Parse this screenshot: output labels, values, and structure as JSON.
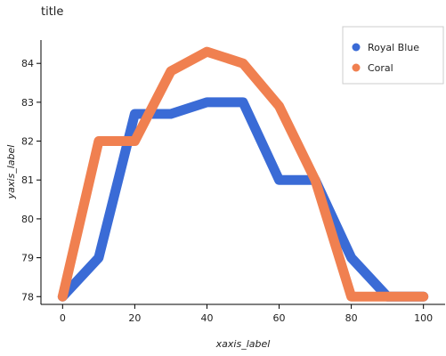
{
  "chart_data": {
    "type": "scatter",
    "title": "title",
    "xlabel": "xaxis_label",
    "ylabel": "yaxis_label",
    "xlim": [
      -6,
      106
    ],
    "ylim": [
      77.8,
      84.6
    ],
    "xticks": [
      0,
      20,
      40,
      60,
      80,
      100
    ],
    "yticks": [
      78,
      79,
      80,
      81,
      82,
      83,
      84
    ],
    "grid": false,
    "legend_position": "top-right",
    "series": [
      {
        "name": "Royal Blue",
        "color": "#3a6bd6",
        "points": [
          [
            0,
            78
          ],
          [
            10,
            79
          ],
          [
            20,
            82.7
          ],
          [
            30,
            82.7
          ],
          [
            40,
            83
          ],
          [
            50,
            83
          ],
          [
            60,
            81
          ],
          [
            70,
            81
          ],
          [
            80,
            79
          ],
          [
            90,
            78
          ],
          [
            100,
            78
          ]
        ]
      },
      {
        "name": "Coral",
        "color": "#f08050",
        "points": [
          [
            0,
            78
          ],
          [
            10,
            82
          ],
          [
            20,
            82
          ],
          [
            30,
            83.8
          ],
          [
            40,
            84.3
          ],
          [
            50,
            84
          ],
          [
            60,
            82.9
          ],
          [
            70,
            81
          ],
          [
            80,
            78
          ],
          [
            90,
            78
          ],
          [
            100,
            78
          ]
        ]
      }
    ]
  }
}
